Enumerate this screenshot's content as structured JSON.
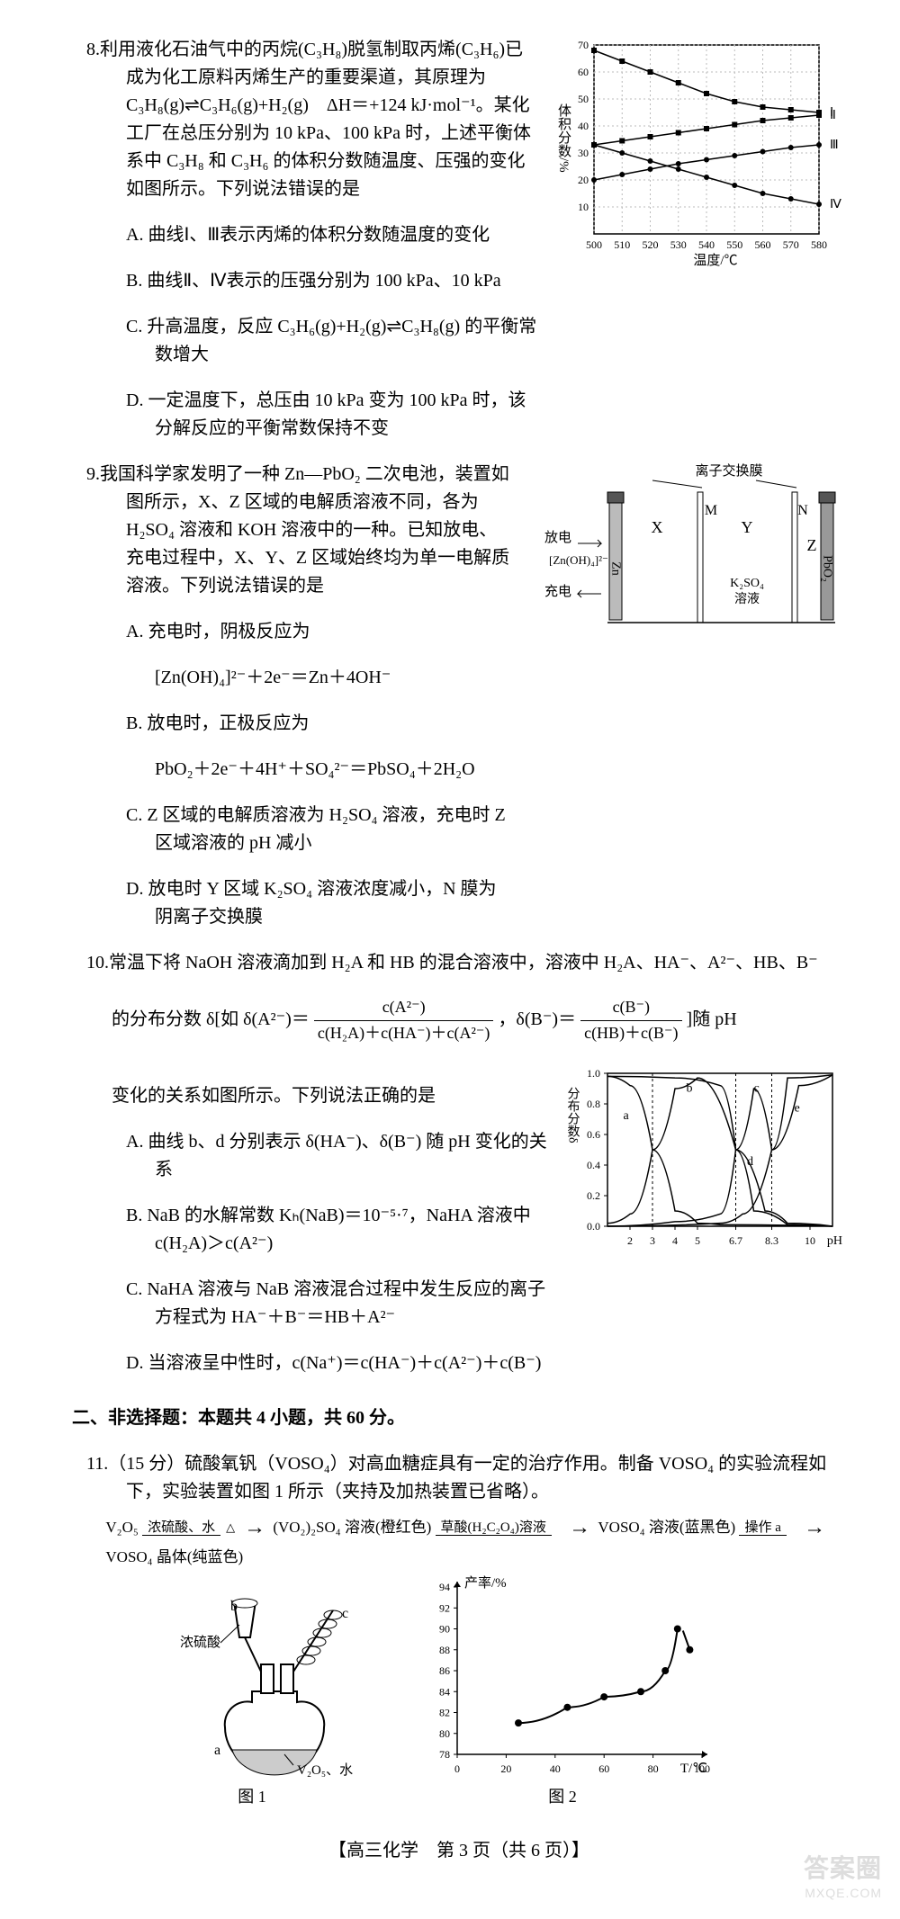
{
  "q8": {
    "num": "8.",
    "stem1": "利用液化石油气中的丙烷(C₃H₈)脱氢制取丙烯(C₃H₆)已成为化工原料丙烯生产的重要渠道，其原理为 C₃H₈(g)⇌C₃H₆(g)+H₂(g)　ΔH＝+124 kJ·mol⁻¹。某化工厂在总压分别为 10 kPa、100 kPa 时，上述平衡体系中 C₃H₈ 和 C₃H₆ 的体积分数随温度、压强的变化如图所示。下列说法错误的是",
    "A": "A. 曲线Ⅰ、Ⅲ表示丙烯的体积分数随温度的变化",
    "B": "B. 曲线Ⅱ、Ⅳ表示的压强分别为 100 kPa、10 kPa",
    "C": "C. 升高温度，反应 C₃H₆(g)+H₂(g)⇌C₃H₈(g) 的平衡常数增大",
    "D": "D. 一定温度下，总压由 10 kPa 变为 100 kPa 时，该分解反应的平衡常数保持不变",
    "chart": {
      "xlabel": "温度/℃",
      "ylabel": "体积分数/%",
      "xlim": [
        500,
        580
      ],
      "ylim": [
        0,
        70
      ],
      "xticks": [
        500,
        510,
        520,
        530,
        540,
        550,
        560,
        570,
        580
      ],
      "yticks": [
        10,
        20,
        30,
        40,
        50,
        60,
        70
      ],
      "series_labels": [
        "Ⅰ",
        "Ⅱ",
        "Ⅲ",
        "Ⅳ"
      ],
      "colors": {
        "axis": "#000",
        "grid": "#bbb",
        "line": "#000"
      },
      "I": [
        [
          500,
          68
        ],
        [
          510,
          64
        ],
        [
          520,
          60
        ],
        [
          530,
          56
        ],
        [
          540,
          52
        ],
        [
          550,
          49
        ],
        [
          560,
          47
        ],
        [
          570,
          46
        ],
        [
          580,
          45
        ]
      ],
      "II": [
        [
          500,
          33
        ],
        [
          510,
          34.5
        ],
        [
          520,
          36
        ],
        [
          530,
          37.5
        ],
        [
          540,
          39
        ],
        [
          550,
          40.5
        ],
        [
          560,
          42
        ],
        [
          570,
          43
        ],
        [
          580,
          44
        ]
      ],
      "III": [
        [
          500,
          20
        ],
        [
          510,
          22
        ],
        [
          520,
          24
        ],
        [
          530,
          26
        ],
        [
          540,
          27.5
        ],
        [
          550,
          29
        ],
        [
          560,
          30.5
        ],
        [
          570,
          32
        ],
        [
          580,
          33
        ]
      ],
      "IV": [
        [
          500,
          33
        ],
        [
          510,
          30
        ],
        [
          520,
          27
        ],
        [
          530,
          24
        ],
        [
          540,
          21
        ],
        [
          550,
          18
        ],
        [
          560,
          15
        ],
        [
          570,
          13
        ],
        [
          580,
          11
        ]
      ]
    }
  },
  "q9": {
    "num": "9.",
    "stem": "我国科学家发明了一种 Zn—PbO₂ 二次电池，装置如图所示，X、Z 区域的电解质溶液不同，各为 H₂SO₄ 溶液和 KOH 溶液中的一种。已知放电、充电过程中，X、Y、Z 区域始终均为单一电解质溶液。下列说法错误的是",
    "A1": "A. 充电时，阴极反应为",
    "A2": "[Zn(OH)₄]²⁻＋2e⁻＝Zn＋4OH⁻",
    "B1": "B. 放电时，正极反应为",
    "B2": "PbO₂＋2e⁻＋4H⁺＋SO₄²⁻＝PbSO₄＋2H₂O",
    "C": "C. Z 区域的电解质溶液为 H₂SO₄ 溶液，充电时 Z 区域溶液的 pH 减小",
    "D": "D. 放电时 Y 区域 K₂SO₄ 溶液浓度减小，N 膜为阴离子交换膜",
    "diagram": {
      "mem_label": "离子交换膜",
      "discharge": "放电",
      "charge": "充电",
      "left_species": "[Zn(OH)₄]²⁻",
      "Zn": "Zn",
      "X": "X",
      "M": "M",
      "Y": "Y",
      "N": "N",
      "Z": "Z",
      "PbO2": "PbO₂",
      "K2SO4": "K₂SO₄\n溶液",
      "electrode_fill": "#888",
      "electrode_stroke": "#000",
      "mem_stroke": "#000",
      "mem_fill": "#fff"
    }
  },
  "q10": {
    "num": "10.",
    "stem_a": "常温下将 NaOH 溶液滴加到 H₂A 和 HB 的混合溶液中，溶液中 H₂A、HA⁻、A²⁻、HB、B⁻",
    "stem_b_pre": "的分布分数 δ[如 δ(A²⁻)＝",
    "frac1_num": "c(A²⁻)",
    "frac1_den": "c(H₂A)＋c(HA⁻)＋c(A²⁻)",
    "stem_b_mid": "，δ(B⁻)＝",
    "frac2_num": "c(B⁻)",
    "frac2_den": "c(HB)＋c(B⁻)",
    "stem_b_post": "]随 pH",
    "stem_c": "变化的关系如图所示。下列说法正确的是",
    "A": "A. 曲线 b、d 分别表示 δ(HA⁻)、δ(B⁻) 随 pH 变化的关系",
    "B": "B. NaB 的水解常数 Kₕ(NaB)＝10⁻⁵·⁷，NaHA 溶液中 c(H₂A)＞c(A²⁻)",
    "C": "C. NaHA 溶液与 NaB 溶液混合过程中发生反应的离子方程式为 HA⁻＋B⁻＝HB＋A²⁻",
    "D": "D. 当溶液呈中性时，c(Na⁺)＝c(HA⁻)＋c(A²⁻)＋c(B⁻)",
    "chart": {
      "ylabel": "分布分数δ",
      "xlabel": "pH",
      "xlim": [
        1,
        11
      ],
      "ylim": [
        0,
        1
      ],
      "xticks": [
        2,
        3,
        4,
        5,
        6.7,
        8.3,
        10
      ],
      "yticks": [
        0,
        0.2,
        0.4,
        0.6,
        0.8,
        1.0
      ],
      "labels": [
        "a",
        "b",
        "c",
        "d",
        "e"
      ],
      "vdash": [
        3,
        6.7,
        8.3
      ],
      "a": [
        [
          1,
          0.98
        ],
        [
          2,
          0.92
        ],
        [
          3,
          0.5
        ],
        [
          4,
          0.1
        ],
        [
          5,
          0.02
        ],
        [
          6,
          0.01
        ],
        [
          11,
          0.0
        ]
      ],
      "b": [
        [
          1,
          0.02
        ],
        [
          2,
          0.08
        ],
        [
          3,
          0.5
        ],
        [
          4,
          0.9
        ],
        [
          5,
          0.97
        ],
        [
          6.7,
          0.5
        ],
        [
          8,
          0.1
        ],
        [
          9,
          0.02
        ],
        [
          11,
          0
        ]
      ],
      "c": [
        [
          1,
          0.98
        ],
        [
          4,
          0.97
        ],
        [
          6,
          0.92
        ],
        [
          6.7,
          0.5
        ],
        [
          7.5,
          0.1
        ],
        [
          9,
          0.01
        ],
        [
          11,
          0
        ]
      ],
      "d": [
        [
          1,
          0
        ],
        [
          4,
          0.03
        ],
        [
          6,
          0.08
        ],
        [
          6.7,
          0.5
        ],
        [
          7.5,
          0.9
        ],
        [
          8.3,
          0.5
        ],
        [
          9,
          0.97
        ],
        [
          11,
          0.99
        ]
      ],
      "e": [
        [
          1,
          0
        ],
        [
          6,
          0.02
        ],
        [
          7,
          0.08
        ],
        [
          8.3,
          0.5
        ],
        [
          9.5,
          0.92
        ],
        [
          11,
          0.99
        ]
      ]
    }
  },
  "section2": "二、非选择题：本题共 4 小题，共 60 分。",
  "q11": {
    "num": "11.",
    "stem": "（15 分）硫酸氧钒（VOSO₄）对高血糖症具有一定的治疗作用。制备 VOSO₄ 的实验流程如下，实验装置如图 1 所示（夹持及加热装置已省略）。",
    "flow": {
      "s1": "V₂O₅",
      "r1_top": "浓硫酸、水",
      "r1_bot": "△",
      "s2": "(VO₂)₂SO₄ 溶液(橙红色)",
      "r2_top": "草酸(H₂C₂O₄)溶液",
      "s3": "VOSO₄ 溶液(蓝黑色)",
      "r3_top": "操作 a",
      "s4": "VOSO₄ 晶体(纯蓝色)"
    },
    "fig1": {
      "cap": "图 1",
      "labels": {
        "a": "a",
        "b": "b",
        "c": "c",
        "acid": "浓硫酸",
        "v2o5": "V₂O₅、水"
      }
    },
    "fig2": {
      "cap": "图 2",
      "ylabel": "产率/%",
      "xlabel": "T/℃",
      "xlim": [
        0,
        100
      ],
      "ylim": [
        78,
        94
      ],
      "xticks": [
        0,
        20,
        40,
        60,
        80,
        100
      ],
      "yticks": [
        78,
        80,
        82,
        84,
        86,
        88,
        90,
        92,
        94
      ],
      "pts": [
        [
          25,
          81
        ],
        [
          45,
          82.5
        ],
        [
          60,
          83.5
        ],
        [
          75,
          84
        ],
        [
          85,
          86
        ],
        [
          90,
          90
        ],
        [
          95,
          88
        ]
      ]
    }
  },
  "footer": "【高三化学　第 3 页（共 6 页）】",
  "wm_big": "答案圈",
  "wm_small": "MXQE.COM"
}
